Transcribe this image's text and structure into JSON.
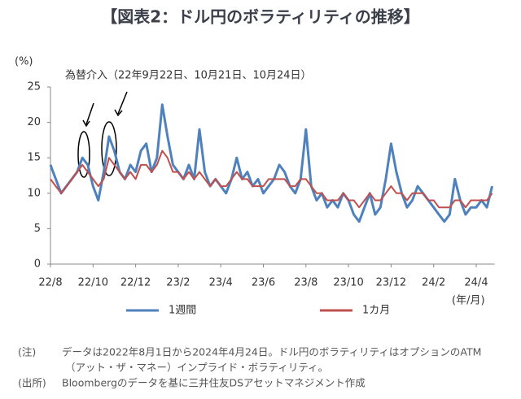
{
  "chart_data": {
    "type": "line",
    "title": "【図表2：ドル円のボラティリティの推移】",
    "y_unit": "(%)",
    "x_unit": "(年/月)",
    "annotation": "為替介入（22年9月22日、10月21日、10月24日）",
    "categories": [
      "22/8",
      null,
      null,
      null,
      null,
      null,
      null,
      null,
      "22/10",
      null,
      null,
      null,
      null,
      null,
      null,
      null,
      "22/12",
      null,
      null,
      null,
      null,
      null,
      null,
      null,
      "23/2",
      null,
      null,
      null,
      null,
      null,
      null,
      null,
      "23/4",
      null,
      null,
      null,
      null,
      null,
      null,
      null,
      "23/6",
      null,
      null,
      null,
      null,
      null,
      null,
      null,
      "23/8",
      null,
      null,
      null,
      null,
      null,
      null,
      null,
      "23/10",
      null,
      null,
      null,
      null,
      null,
      null,
      null,
      "23/12",
      null,
      null,
      null,
      null,
      null,
      null,
      null,
      "24/2",
      null,
      null,
      null,
      null,
      null,
      null,
      null,
      "24/4",
      null,
      null,
      null
    ],
    "series": [
      {
        "name": "1週間",
        "color": "#4f81bd",
        "values": [
          14,
          12,
          10,
          11,
          12,
          13,
          15,
          14,
          11,
          9,
          13,
          18,
          16,
          13,
          12,
          14,
          13,
          16,
          17,
          13,
          15,
          22.5,
          18,
          14,
          13,
          12,
          14,
          12,
          19,
          13,
          11,
          12,
          11,
          10,
          12,
          15,
          12,
          13,
          11,
          12,
          10,
          11,
          12,
          14,
          13,
          11,
          10,
          12,
          19,
          11,
          9,
          10,
          8,
          9,
          8,
          10,
          9,
          7,
          6,
          8,
          10,
          7,
          8,
          12,
          17,
          13,
          10,
          8,
          9,
          11,
          10,
          9,
          8,
          7,
          6,
          7,
          12,
          9,
          7,
          8,
          8,
          9,
          8,
          11
        ]
      },
      {
        "name": "1カ月",
        "color": "#c0504d",
        "values": [
          12,
          11,
          10,
          11,
          12,
          13,
          14,
          13,
          12,
          11,
          12,
          15,
          14,
          13,
          12,
          13,
          12,
          14,
          14,
          13,
          14,
          16,
          15,
          13,
          13,
          12,
          13,
          12,
          13,
          12,
          11,
          12,
          11,
          11,
          12,
          13,
          12,
          12,
          11,
          11,
          11,
          12,
          12,
          12,
          12,
          11,
          11,
          12,
          12,
          11,
          10,
          10,
          9,
          9,
          9,
          10,
          9,
          9,
          8,
          9,
          10,
          9,
          9,
          10,
          11,
          10,
          10,
          9,
          10,
          10,
          10,
          9,
          9,
          8,
          8,
          8,
          9,
          9,
          8,
          9,
          9,
          9,
          9,
          10
        ]
      }
    ],
    "ylim": [
      0,
      25
    ],
    "yticks": [
      0,
      5,
      10,
      15,
      20,
      25
    ],
    "notes": [
      {
        "label": "(注)",
        "lines": [
          "データは2022年8月1日から2024年4月24日。ドル円のボラティリティはオプションのATM",
          "（アット・ザ・マネー）インプライド・ボラティリティ。"
        ]
      },
      {
        "label": "(出所)",
        "lines": [
          "Bloombergのデータを基に三井住友DSアセットマネジメント作成"
        ]
      }
    ]
  }
}
